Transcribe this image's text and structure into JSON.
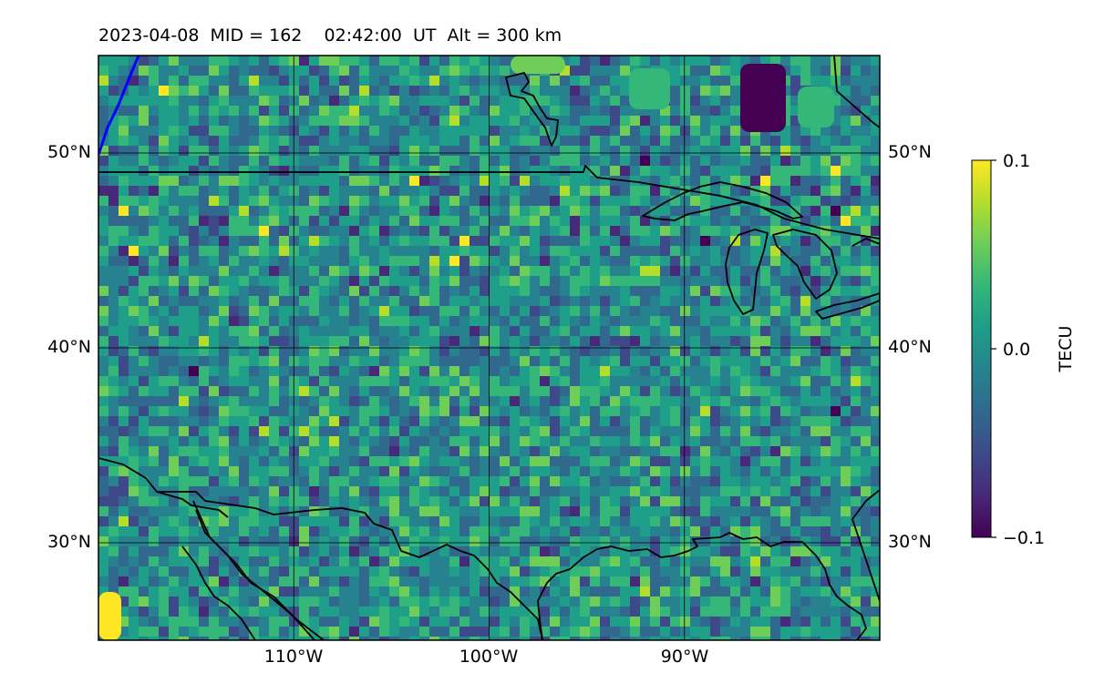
{
  "title": "2023-04-08  MID = 162    02:42:00  UT  Alt = 300 km",
  "map": {
    "lon_range": [
      -120,
      -80
    ],
    "lat_range": [
      25,
      55
    ],
    "gridlines": true,
    "lat_ticks": [
      {
        "value": 30,
        "label": "30°N"
      },
      {
        "value": 40,
        "label": "40°N"
      },
      {
        "value": 50,
        "label": "50°N"
      }
    ],
    "lon_ticks": [
      {
        "value": -110,
        "label": "110°W"
      },
      {
        "value": -100,
        "label": "100°W"
      },
      {
        "value": -90,
        "label": "90°W"
      }
    ],
    "field_color_scale": "viridis",
    "coastline_color": "#000000",
    "track_color": "#0000ff"
  },
  "colorbar": {
    "label": "TECU",
    "min": -0.1,
    "max": 0.1,
    "ticks": [
      {
        "value": 0.1,
        "label": "0.1"
      },
      {
        "value": 0.0,
        "label": "0.0"
      },
      {
        "value": -0.1,
        "label": "−0.1"
      }
    ],
    "colors": [
      "#440154",
      "#482878",
      "#3e4989",
      "#31688e",
      "#26828e",
      "#1f9e89",
      "#35b779",
      "#6ece58",
      "#b5de2b",
      "#fde725"
    ]
  }
}
